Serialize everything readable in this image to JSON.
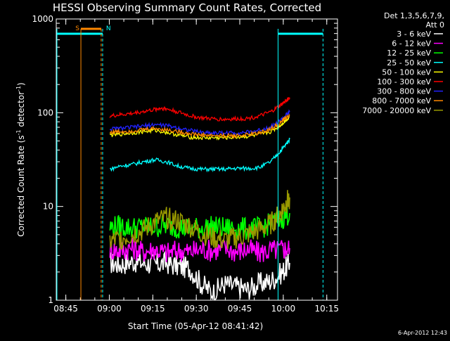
{
  "chart_data": {
    "type": "line",
    "title": "HESSI Observing Summary Count Rates, Corrected",
    "xlabel": "Start Time (05-Apr-12 08:41:42)",
    "ylabel_main": "Corrected Count Rate (s",
    "ylabel_sup1": "-1",
    "ylabel_mid": " detector",
    "ylabel_sup2": "-1",
    "ylabel_end": ")",
    "y_scale": "log",
    "ylim": [
      1,
      1000
    ],
    "xlim_minutes": [
      0,
      90
    ],
    "x_ticks": [
      {
        "t": 3.3,
        "label": "08:45"
      },
      {
        "t": 18.3,
        "label": "09:00"
      },
      {
        "t": 33.3,
        "label": "09:15"
      },
      {
        "t": 48.3,
        "label": "09:30"
      },
      {
        "t": 63.3,
        "label": "09:45"
      },
      {
        "t": 78.3,
        "label": "10:00"
      },
      {
        "t": 93.3,
        "label": "10:15"
      }
    ],
    "y_ticks": [
      {
        "v": 1,
        "label": "1"
      },
      {
        "v": 10,
        "label": "10"
      },
      {
        "v": 100,
        "label": "100"
      },
      {
        "v": 1000,
        "label": "1000"
      }
    ],
    "legend_header": [
      "Det 1,3,5,6,7,9,",
      "Att 0"
    ],
    "legend_position": "top-right outside",
    "timestamp": "6-Apr-2012 12:43",
    "series": [
      {
        "name": "3 - 6 keV",
        "color": "#ffffff",
        "data": [
          [
            18.5,
            2.5
          ],
          [
            22,
            2.4
          ],
          [
            26,
            2.6
          ],
          [
            30,
            2.5
          ],
          [
            34,
            2.4
          ],
          [
            38,
            2.5
          ],
          [
            42,
            2.3
          ],
          [
            46,
            2.2
          ],
          [
            50,
            1.5
          ],
          [
            54,
            1.2
          ],
          [
            58,
            1.5
          ],
          [
            62,
            1.4
          ],
          [
            66,
            1.3
          ],
          [
            70,
            1.5
          ],
          [
            74,
            1.6
          ],
          [
            78,
            2.0
          ],
          [
            80.5,
            2.5
          ]
        ]
      },
      {
        "name": "6 - 12 keV",
        "color": "#ff00ff",
        "data": [
          [
            18.5,
            3.5
          ],
          [
            22,
            3.4
          ],
          [
            26,
            3.6
          ],
          [
            30,
            3.3
          ],
          [
            34,
            3.5
          ],
          [
            38,
            3.2
          ],
          [
            42,
            3.4
          ],
          [
            46,
            3.3
          ],
          [
            50,
            3.5
          ],
          [
            54,
            3.4
          ],
          [
            58,
            3.6
          ],
          [
            62,
            3.3
          ],
          [
            66,
            3.5
          ],
          [
            70,
            3.2
          ],
          [
            74,
            3.4
          ],
          [
            78,
            3.5
          ],
          [
            80.5,
            3.6
          ]
        ]
      },
      {
        "name": "12 - 25 keV",
        "color": "#00ff00",
        "data": [
          [
            18.5,
            6.0
          ],
          [
            22,
            6.2
          ],
          [
            26,
            5.9
          ],
          [
            30,
            6.1
          ],
          [
            34,
            6.0
          ],
          [
            38,
            6.3
          ],
          [
            42,
            6.0
          ],
          [
            46,
            5.8
          ],
          [
            50,
            5.9
          ],
          [
            54,
            6.1
          ],
          [
            58,
            5.8
          ],
          [
            62,
            6.0
          ],
          [
            66,
            5.7
          ],
          [
            70,
            5.9
          ],
          [
            74,
            6.5
          ],
          [
            78,
            7.5
          ],
          [
            80.5,
            8.5
          ]
        ]
      },
      {
        "name": "25 - 50 keV",
        "color": "#00ffff",
        "data": [
          [
            18.5,
            25
          ],
          [
            22,
            27
          ],
          [
            26,
            28
          ],
          [
            30,
            30
          ],
          [
            34,
            31.5
          ],
          [
            38,
            30
          ],
          [
            42,
            27
          ],
          [
            46,
            25.5
          ],
          [
            50,
            25
          ],
          [
            54,
            25
          ],
          [
            58,
            25
          ],
          [
            62,
            25.5
          ],
          [
            66,
            25.5
          ],
          [
            70,
            26
          ],
          [
            74,
            30
          ],
          [
            77,
            38
          ],
          [
            79,
            45
          ],
          [
            80.5,
            52
          ]
        ]
      },
      {
        "name": "50 - 100 keV",
        "color": "#ffff00",
        "data": [
          [
            18.5,
            58
          ],
          [
            22,
            59
          ],
          [
            26,
            61
          ],
          [
            30,
            63
          ],
          [
            34,
            65
          ],
          [
            38,
            62
          ],
          [
            42,
            58
          ],
          [
            46,
            55
          ],
          [
            50,
            54
          ],
          [
            54,
            54
          ],
          [
            58,
            54
          ],
          [
            62,
            55
          ],
          [
            66,
            56
          ],
          [
            70,
            58
          ],
          [
            74,
            63
          ],
          [
            77,
            72
          ],
          [
            79,
            82
          ],
          [
            80.5,
            90
          ]
        ]
      },
      {
        "name": "100 - 300 keV",
        "color": "#ff0000",
        "data": [
          [
            18.5,
            92
          ],
          [
            22,
            95
          ],
          [
            26,
            98
          ],
          [
            30,
            103
          ],
          [
            34,
            108
          ],
          [
            36,
            112
          ],
          [
            38,
            110
          ],
          [
            42,
            102
          ],
          [
            46,
            93
          ],
          [
            50,
            88
          ],
          [
            54,
            86
          ],
          [
            58,
            85
          ],
          [
            62,
            86
          ],
          [
            66,
            87
          ],
          [
            70,
            92
          ],
          [
            74,
            102
          ],
          [
            77,
            118
          ],
          [
            79,
            132
          ],
          [
            80.5,
            145
          ]
        ]
      },
      {
        "name": "300 - 800 keV",
        "color": "#2222ff",
        "data": [
          [
            18.5,
            67
          ],
          [
            22,
            68
          ],
          [
            26,
            70
          ],
          [
            30,
            72
          ],
          [
            34,
            75
          ],
          [
            38,
            73
          ],
          [
            42,
            69
          ],
          [
            46,
            65
          ],
          [
            50,
            62
          ],
          [
            54,
            61
          ],
          [
            58,
            61
          ],
          [
            62,
            61
          ],
          [
            66,
            62
          ],
          [
            70,
            65
          ],
          [
            74,
            71
          ],
          [
            77,
            81
          ],
          [
            79,
            92
          ],
          [
            80.5,
            102
          ]
        ]
      },
      {
        "name": "800 - 7000 keV",
        "color": "#ff8800",
        "data": [
          [
            18.5,
            62
          ],
          [
            22,
            63
          ],
          [
            26,
            64
          ],
          [
            30,
            66
          ],
          [
            34,
            68
          ],
          [
            38,
            66
          ],
          [
            42,
            63
          ],
          [
            46,
            60
          ],
          [
            50,
            58
          ],
          [
            54,
            57
          ],
          [
            58,
            57
          ],
          [
            62,
            57
          ],
          [
            66,
            58
          ],
          [
            70,
            61
          ],
          [
            74,
            67
          ],
          [
            77,
            77
          ],
          [
            79,
            87
          ],
          [
            80.5,
            95
          ]
        ]
      },
      {
        "name": "7000 - 20000 keV",
        "color": "#999900",
        "data": [
          [
            18.5,
            4.2
          ],
          [
            22,
            4.5
          ],
          [
            26,
            5.0
          ],
          [
            30,
            5.5
          ],
          [
            34,
            6.8
          ],
          [
            38,
            7.5
          ],
          [
            42,
            7.0
          ],
          [
            46,
            6.2
          ],
          [
            50,
            5.2
          ],
          [
            54,
            4.6
          ],
          [
            58,
            4.3
          ],
          [
            62,
            4.6
          ],
          [
            66,
            5.0
          ],
          [
            70,
            5.6
          ],
          [
            74,
            6.5
          ],
          [
            77,
            8.2
          ],
          [
            79,
            10.5
          ],
          [
            80.5,
            12.5
          ]
        ]
      }
    ],
    "markers": [
      {
        "label": "S",
        "label_color": "#ff8800"
      },
      {
        "label": "N",
        "label_color": "#00ffff"
      }
    ]
  }
}
